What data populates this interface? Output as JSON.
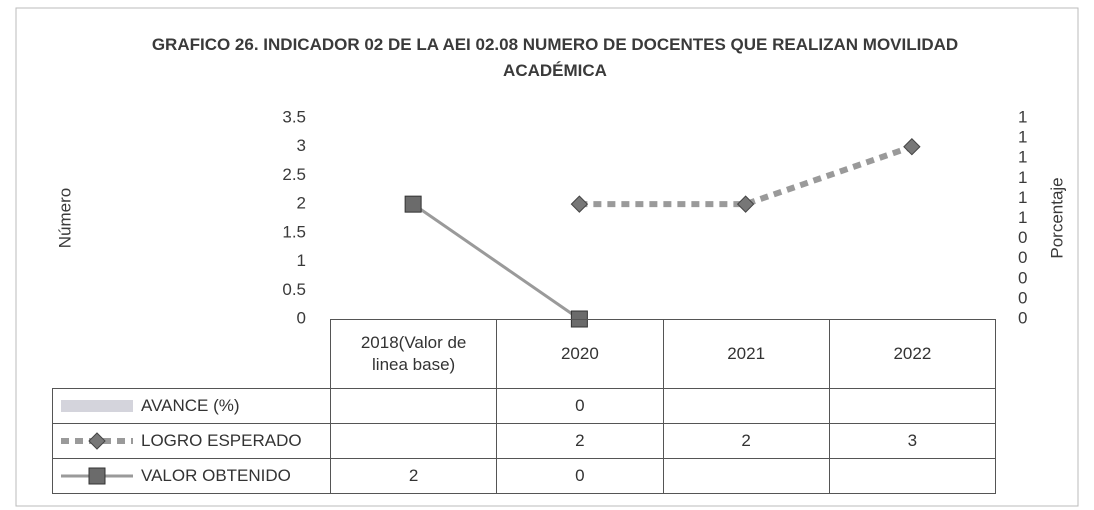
{
  "chart_data": {
    "type": "line",
    "title": "GRAFICO 26. INDICADOR 02 DE LA AEI 02.08 NUMERO DE DOCENTES QUE REALIZAN MOVILIDAD ACADÉMICA",
    "y_label": "Número",
    "y2_label": "Porcentaje",
    "categories": [
      "2018(Valor de linea base)",
      "2020",
      "2021",
      "2022"
    ],
    "ylim": [
      0,
      3.5
    ],
    "yticks": [
      0,
      0.5,
      1,
      1.5,
      2,
      2.5,
      3,
      3.5
    ],
    "y2lim": [
      0,
      1
    ],
    "y2ticks": [
      {
        "value": 0,
        "label": "0"
      },
      {
        "value": 0.1,
        "label": "0"
      },
      {
        "value": 0.2,
        "label": "0"
      },
      {
        "value": 0.3,
        "label": "0"
      },
      {
        "value": 0.4,
        "label": "0"
      },
      {
        "value": 0.5,
        "label": "1"
      },
      {
        "value": 0.6,
        "label": "1"
      },
      {
        "value": 0.7,
        "label": "1"
      },
      {
        "value": 0.8,
        "label": "1"
      },
      {
        "value": 0.9,
        "label": "1"
      },
      {
        "value": 1,
        "label": "1"
      }
    ],
    "grid": false,
    "series": [
      {
        "name": "AVANCE (%)",
        "type": "bar",
        "axis": "y2",
        "color": "#d4d4dc",
        "values": [
          null,
          0,
          null,
          null
        ]
      },
      {
        "name": "LOGRO ESPERADO",
        "type": "line",
        "marker": "diamond",
        "dashed": true,
        "color": "#9a9a9a",
        "values": [
          null,
          2,
          2,
          3
        ]
      },
      {
        "name": "VALOR OBTENIDO",
        "type": "line",
        "marker": "square",
        "dashed": false,
        "color": "#9a9a9a",
        "values": [
          2,
          0,
          null,
          null
        ]
      }
    ]
  }
}
